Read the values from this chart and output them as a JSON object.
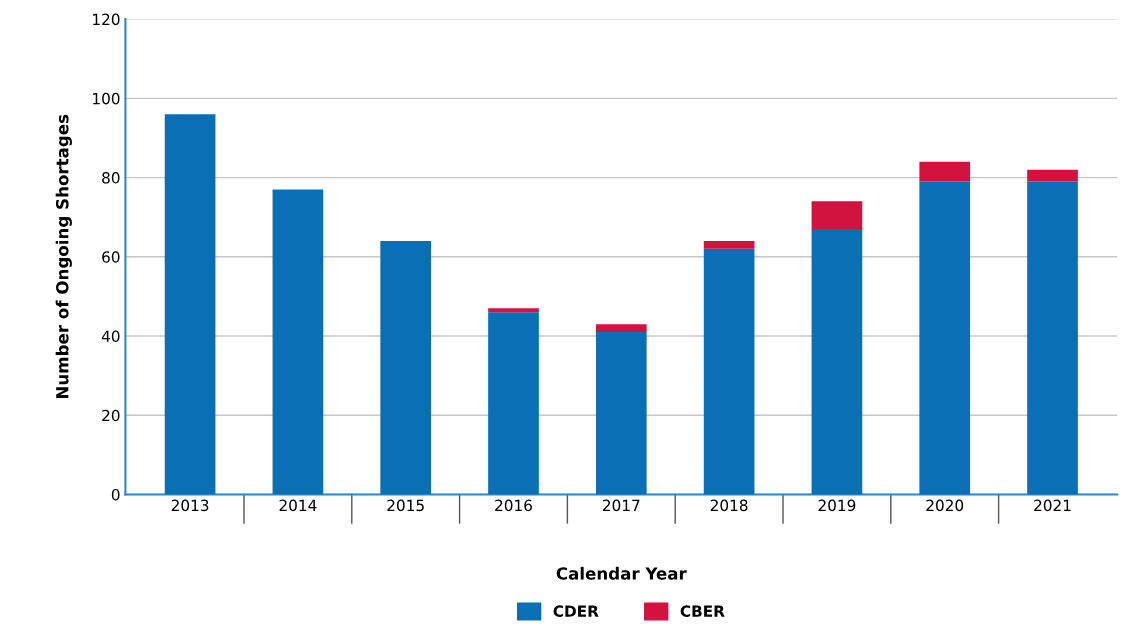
{
  "chart_data": {
    "type": "bar",
    "stacked": true,
    "xlabel": "Calendar Year",
    "ylabel": "Number of Ongoing Shortages",
    "categories": [
      "2013",
      "2014",
      "2015",
      "2016",
      "2017",
      "2018",
      "2019",
      "2020",
      "2021"
    ],
    "series": [
      {
        "name": "CDER",
        "color": "#0a6fb4",
        "values": [
          96,
          77,
          64,
          46,
          41,
          62,
          67,
          79,
          79
        ]
      },
      {
        "name": "CBER",
        "color": "#d2123f",
        "values": [
          0,
          0,
          0,
          1,
          2,
          2,
          7,
          5,
          3
        ]
      }
    ],
    "ylim": [
      0,
      120
    ],
    "yticks": [
      0,
      20,
      40,
      60,
      80,
      100,
      120
    ],
    "grid": "y",
    "legend": "bottom"
  }
}
